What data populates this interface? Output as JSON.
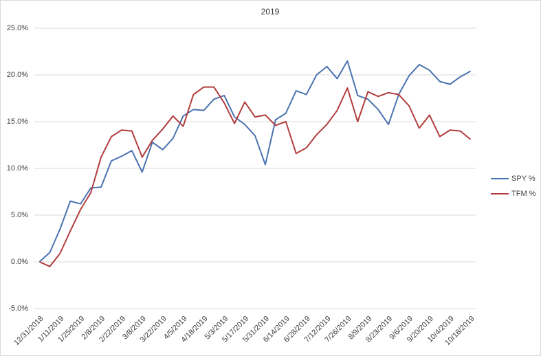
{
  "chart_data": {
    "type": "line",
    "title": "2019",
    "categories": [
      "12/31/2018",
      null,
      "1/11/2019",
      null,
      "1/25/2019",
      null,
      "2/8/2019",
      null,
      "2/22/2019",
      null,
      "3/8/2019",
      null,
      "3/22/2019",
      null,
      "4/5/2019",
      null,
      "4/18/2019",
      null,
      "5/3/2019",
      null,
      "5/17/2019",
      null,
      "5/31/2019",
      null,
      "6/14/2019",
      null,
      "6/28/2019",
      null,
      "7/12/2019",
      null,
      "7/26/2019",
      null,
      "8/9/2019",
      null,
      "8/23/2019",
      null,
      "9/6/2019",
      null,
      "9/20/2019",
      null,
      "10/4/2019",
      null,
      "10/18/2019"
    ],
    "series": [
      {
        "name": "SPY %",
        "color": "#4a72b0",
        "values": [
          0.0,
          1.0,
          3.5,
          6.5,
          6.2,
          7.9,
          8.0,
          10.8,
          11.3,
          11.9,
          9.6,
          12.8,
          12.0,
          13.2,
          15.6,
          16.3,
          16.2,
          17.4,
          17.8,
          15.5,
          14.7,
          13.5,
          10.4,
          15.2,
          15.9,
          18.3,
          17.9,
          20.0,
          20.9,
          19.6,
          21.5,
          17.8,
          17.4,
          16.3,
          14.7,
          17.9,
          19.9,
          21.1,
          20.5,
          19.3,
          19.0,
          19.8,
          20.4
        ]
      },
      {
        "name": "TFM %",
        "color": "#b23b3b",
        "values": [
          0.0,
          -0.5,
          0.9,
          3.3,
          5.6,
          7.4,
          11.2,
          13.4,
          14.1,
          14.0,
          11.2,
          13.0,
          14.2,
          15.6,
          14.5,
          17.9,
          18.7,
          18.7,
          17.0,
          14.8,
          17.1,
          15.5,
          15.7,
          14.6,
          15.0,
          11.6,
          12.2,
          13.6,
          14.7,
          16.2,
          18.6,
          15.0,
          18.2,
          17.7,
          18.1,
          17.9,
          16.7,
          14.3,
          15.7,
          13.4,
          14.1,
          14.0,
          13.1
        ]
      }
    ],
    "ylim": [
      -5,
      25
    ],
    "yticks": [
      {
        "value": -5,
        "label": "-5.0%"
      },
      {
        "value": 0,
        "label": "0.0%"
      },
      {
        "value": 5,
        "label": "5.0%"
      },
      {
        "value": 10,
        "label": "10.0%"
      },
      {
        "value": 15,
        "label": "15.0%"
      },
      {
        "value": 20,
        "label": "20.0%"
      },
      {
        "value": 25,
        "label": "25.0%"
      }
    ],
    "grid": true,
    "legend": "right"
  }
}
